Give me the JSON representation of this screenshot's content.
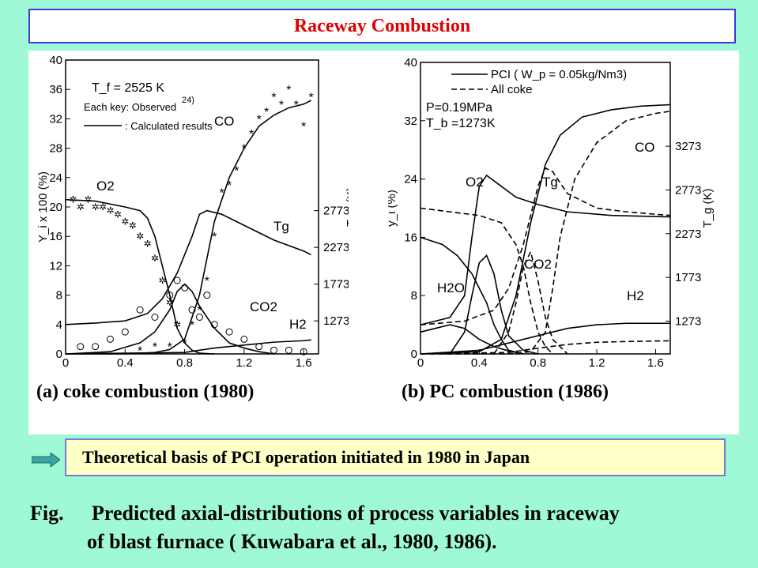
{
  "header": {
    "title": "Raceway Combustion"
  },
  "colors": {
    "background": "#9ff9d7",
    "title_text": "#e00000",
    "title_border": "#3a3adb",
    "basis_box": "#ffffc8",
    "arrow": "#3aa8a0"
  },
  "icons": {
    "basis_arrow": "right-arrow-icon"
  },
  "chart_data": [
    {
      "type": "line",
      "panel_caption": "(a) coke combustion (1980)",
      "xticks": [
        "0",
        "0.4",
        "0.8",
        "1.2",
        "1.6"
      ],
      "xlim": [
        0,
        1.7
      ],
      "ylim_left": [
        0,
        40
      ],
      "yticks_left": [
        "0",
        "4",
        "8",
        "12",
        "16",
        "20",
        "24",
        "28",
        "32",
        "36",
        "40"
      ],
      "ylabel_left": "Y_i x 100 (%)",
      "yticks_right": [
        "1273",
        "1773",
        "2273",
        "2773"
      ],
      "ylabel_right": "T_g (K)",
      "annotations": [
        "T_f = 2525 K",
        "Each key: Observed",
        "24)",
        ": Calculated results"
      ],
      "series": [
        {
          "name": "CO",
          "x": [
            0,
            0.4,
            0.6,
            0.7,
            0.8,
            0.9,
            1.0,
            1.1,
            1.2,
            1.3,
            1.4,
            1.5,
            1.6,
            1.65
          ],
          "y": [
            0,
            0,
            0.2,
            0.6,
            2,
            8,
            18,
            24,
            28,
            31,
            32.5,
            33.5,
            34,
            34.5
          ]
        },
        {
          "name": "O2",
          "x": [
            0,
            0.2,
            0.4,
            0.5,
            0.55,
            0.6,
            0.65,
            0.7,
            0.75,
            0.8,
            0.85,
            0.9,
            1.0
          ],
          "y": [
            21,
            20.8,
            20,
            19.5,
            18.5,
            16,
            12,
            8,
            3.5,
            1.5,
            0.5,
            0.1,
            0
          ]
        },
        {
          "name": "CO2",
          "x": [
            0,
            0.3,
            0.5,
            0.6,
            0.7,
            0.75,
            0.8,
            0.85,
            0.9,
            1.0,
            1.1,
            1.2,
            1.3,
            1.4
          ],
          "y": [
            0,
            0.3,
            1.5,
            3,
            6,
            8.5,
            9.5,
            8.5,
            6.5,
            3.5,
            1.5,
            0.8,
            0.3,
            0
          ]
        },
        {
          "name": "Tg",
          "x": [
            0,
            0.2,
            0.4,
            0.55,
            0.65,
            0.75,
            0.85,
            0.9,
            0.95,
            1.05,
            1.2,
            1.4,
            1.6,
            1.65
          ],
          "y": [
            4,
            4.2,
            4.5,
            5.5,
            7.5,
            11,
            16,
            19,
            19.5,
            19,
            17.5,
            15.5,
            14,
            13.5
          ]
        },
        {
          "name": "H2",
          "x": [
            0,
            0.8,
            1.0,
            1.2,
            1.4,
            1.6,
            1.65
          ],
          "y": [
            0,
            0.2,
            0.8,
            1.2,
            1.6,
            1.8,
            1.9
          ]
        }
      ],
      "observed": [
        {
          "name": "CO*",
          "x": [
            0.5,
            0.6,
            0.7,
            0.8,
            0.85,
            0.9,
            0.95,
            1.0,
            1.05,
            1.1,
            1.15,
            1.2,
            1.25,
            1.3,
            1.35,
            1.4,
            1.45,
            1.5,
            1.55,
            1.6,
            1.65
          ],
          "y": [
            0.5,
            1,
            1,
            1.5,
            4,
            6,
            10,
            16,
            22,
            23,
            25,
            28,
            30,
            32,
            33,
            35,
            34,
            36,
            34,
            31,
            35
          ]
        },
        {
          "name": "O2o",
          "x": [
            0.05,
            0.1,
            0.15,
            0.2,
            0.25,
            0.3,
            0.35,
            0.4,
            0.45,
            0.5,
            0.55,
            0.6,
            0.65,
            0.7,
            0.75
          ],
          "y": [
            21,
            20,
            21,
            20,
            20,
            19.5,
            19,
            18,
            17.5,
            16,
            15,
            13,
            10,
            7,
            4
          ]
        },
        {
          "name": "CO2o",
          "x": [
            0.1,
            0.2,
            0.3,
            0.4,
            0.5,
            0.6,
            0.7,
            0.75,
            0.8,
            0.85,
            0.9,
            0.95,
            1.0,
            1.1,
            1.2,
            1.3,
            1.4,
            1.5,
            1.6
          ],
          "y": [
            1,
            1,
            2,
            3,
            6,
            5,
            8,
            10,
            9,
            6,
            5,
            8,
            4,
            3,
            2,
            1,
            0.5,
            0.5,
            0.3
          ]
        }
      ],
      "labels": [
        "CO",
        "O2",
        "Tg",
        "CO2",
        "H2"
      ]
    },
    {
      "type": "line",
      "panel_caption": "(b) PC combustion (1986)",
      "xticks": [
        "0",
        "0.4",
        "0.8",
        "1.2",
        "1.6"
      ],
      "xlim": [
        0,
        1.7
      ],
      "ylim_left": [
        0,
        40
      ],
      "yticks_left": [
        "0",
        "8",
        "16",
        "24",
        "32",
        "40"
      ],
      "ylabel_left": "y_i (%)",
      "yticks_right": [
        "1273",
        "1773",
        "2273",
        "2773",
        "3273"
      ],
      "ylabel_right": "T_g (K)",
      "legend": [
        "PCI ( W_p = 0.05kg/Nm3)",
        "All coke"
      ],
      "annotations": [
        "P=0.19MPa",
        "T_b =1273K"
      ],
      "series": [
        {
          "name": "CO (PCI)",
          "style": "solid",
          "x": [
            0,
            0.4,
            0.55,
            0.65,
            0.75,
            0.85,
            0.95,
            1.1,
            1.3,
            1.5,
            1.7
          ],
          "y": [
            0,
            0.3,
            2,
            8,
            18,
            26,
            30,
            32.5,
            33.5,
            34,
            34.2
          ]
        },
        {
          "name": "CO (All coke)",
          "style": "dashed",
          "x": [
            0,
            0.6,
            0.75,
            0.85,
            0.9,
            0.95,
            1.05,
            1.2,
            1.4,
            1.6,
            1.7
          ],
          "y": [
            0,
            0,
            0.3,
            3,
            9,
            16,
            24,
            29,
            32,
            33,
            33.3
          ]
        },
        {
          "name": "O2 (PCI)",
          "style": "solid",
          "x": [
            0,
            0.15,
            0.25,
            0.35,
            0.45,
            0.5,
            0.55,
            0.6,
            0.7
          ],
          "y": [
            16,
            15,
            13.5,
            11,
            7,
            4,
            2,
            0.5,
            0
          ]
        },
        {
          "name": "O2 (All coke)",
          "style": "dashed",
          "x": [
            0,
            0.2,
            0.4,
            0.55,
            0.65,
            0.7,
            0.75,
            0.8,
            0.85,
            0.9
          ],
          "y": [
            20,
            19.5,
            19,
            18,
            15,
            12,
            7,
            3,
            1,
            0
          ]
        },
        {
          "name": "Tg (PCI)",
          "style": "solid",
          "x": [
            0,
            0.2,
            0.3,
            0.35,
            0.4,
            0.45,
            0.55,
            0.65,
            0.8,
            1.0,
            1.3,
            1.7
          ],
          "y": [
            4,
            5,
            8,
            16,
            23,
            24.5,
            23,
            21.5,
            20.5,
            19.5,
            19,
            18.8
          ]
        },
        {
          "name": "Tg (All coke)",
          "style": "dashed",
          "x": [
            0,
            0.3,
            0.5,
            0.6,
            0.7,
            0.8,
            0.85,
            0.9,
            1.0,
            1.2,
            1.4,
            1.7
          ],
          "y": [
            4,
            4.5,
            6,
            9,
            15,
            23,
            25.5,
            25,
            22,
            20,
            19.5,
            19
          ]
        },
        {
          "name": "CO2 (PCI)",
          "style": "solid",
          "x": [
            0.2,
            0.3,
            0.35,
            0.4,
            0.45,
            0.5,
            0.55,
            0.6,
            0.7,
            0.8
          ],
          "y": [
            0,
            3,
            8,
            12.5,
            13.5,
            11,
            6,
            2.5,
            0.5,
            0
          ]
        },
        {
          "name": "CO2 (All coke)",
          "style": "dashed",
          "x": [
            0.5,
            0.6,
            0.65,
            0.7,
            0.75,
            0.8,
            0.85,
            0.9,
            1.0
          ],
          "y": [
            0,
            3,
            7,
            12,
            14,
            10,
            5,
            2,
            0
          ]
        },
        {
          "name": "H2 (PCI)",
          "style": "solid",
          "x": [
            0,
            0.4,
            0.8,
            1.0,
            1.2,
            1.4,
            1.7
          ],
          "y": [
            0,
            0.5,
            2.5,
            3.5,
            4,
            4.2,
            4.2
          ]
        },
        {
          "name": "H2 (All coke)",
          "style": "dashed",
          "x": [
            0,
            0.6,
            0.8,
            1.0,
            1.2,
            1.4,
            1.7
          ],
          "y": [
            0,
            0.2,
            0.8,
            1.3,
            1.6,
            1.7,
            1.8
          ]
        },
        {
          "name": "H2O (PCI)",
          "style": "solid",
          "x": [
            0,
            0.1,
            0.2,
            0.3,
            0.4,
            0.5,
            0.6,
            0.7
          ],
          "y": [
            3,
            3.5,
            4,
            3.5,
            2,
            1,
            0.4,
            0
          ]
        }
      ],
      "labels": [
        "CO",
        "O2",
        "Tg",
        "CO2",
        "H2O",
        "H2"
      ]
    }
  ],
  "basis": {
    "text": "Theoretical basis of PCI operation initiated in 1980 in Japan"
  },
  "caption": {
    "lead": "Fig.",
    "line1": "Predicted axial-distributions of process variables in raceway",
    "line2": "of blast furnace ( Kuwabara et al., 1980, 1986)."
  }
}
